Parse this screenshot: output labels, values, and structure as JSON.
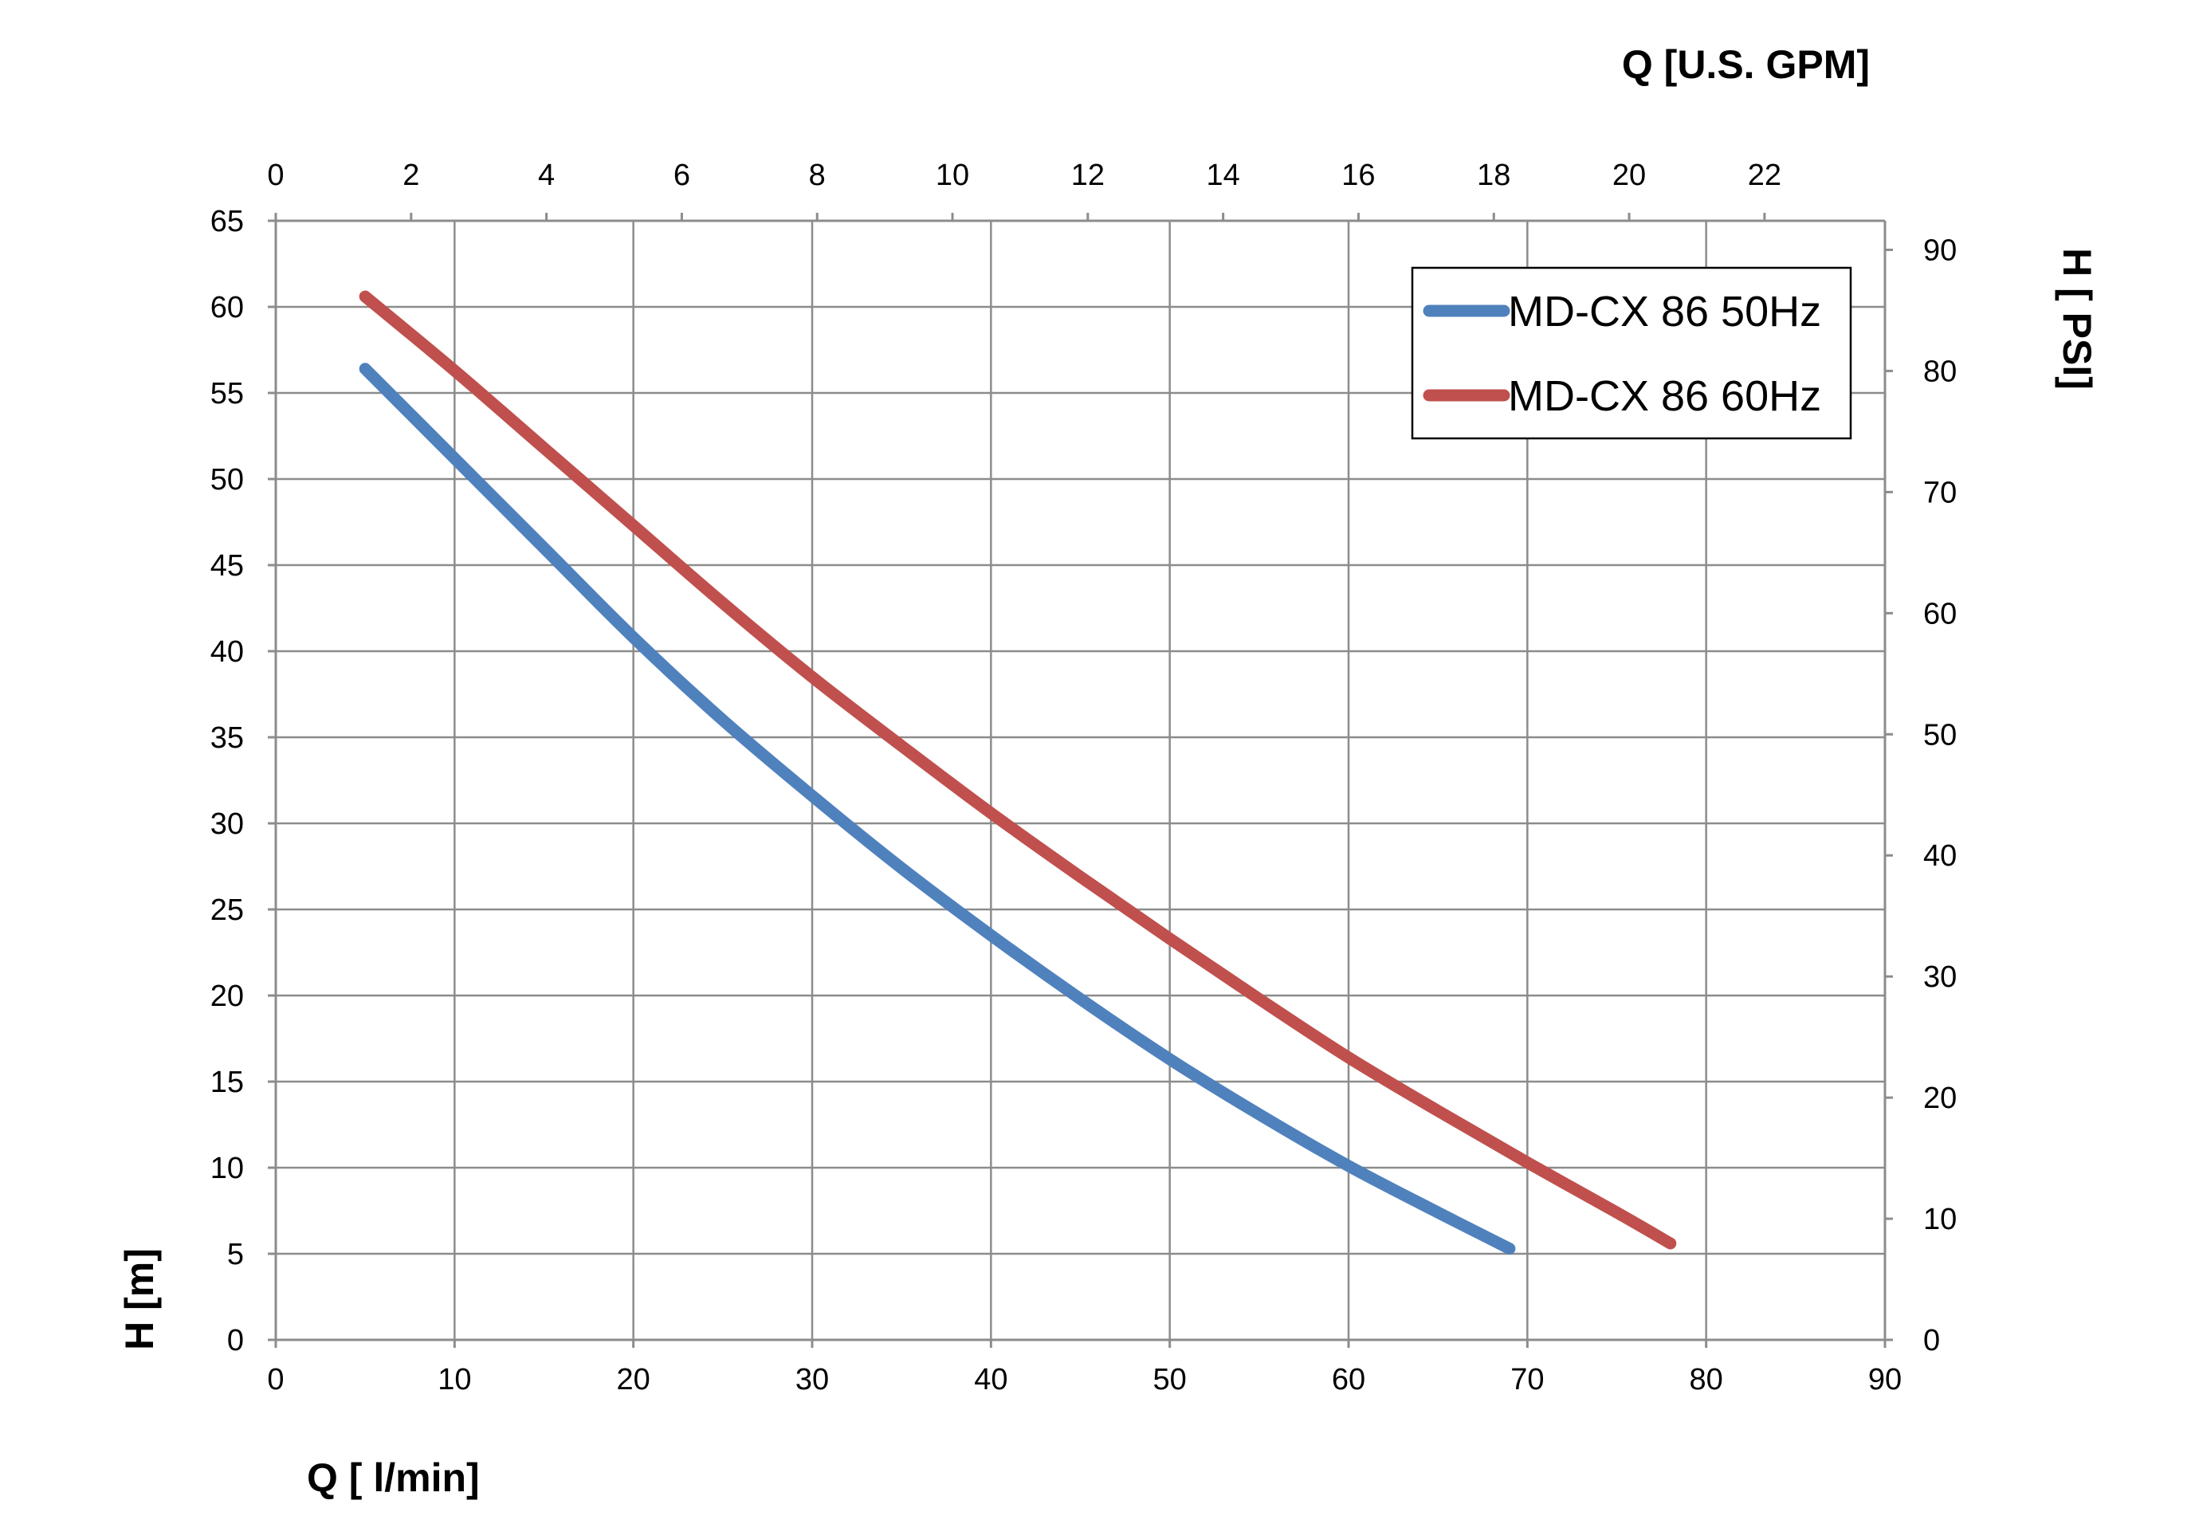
{
  "chart_data": {
    "type": "line",
    "x_bottom": {
      "label": "Q [ l/min]",
      "min": 0,
      "max": 90,
      "step": 10,
      "ticks": [
        "0",
        "10",
        "20",
        "30",
        "40",
        "50",
        "60",
        "70",
        "80",
        "90"
      ]
    },
    "x_top": {
      "label": "Q  [U.S. GPM]",
      "min": 0,
      "max": 23.78,
      "step": 2,
      "ticks": [
        "0",
        "2",
        "4",
        "6",
        "8",
        "10",
        "12",
        "14",
        "16",
        "18",
        "20",
        "22"
      ]
    },
    "y_left": {
      "label": "H [m]",
      "min": 0,
      "max": 65,
      "step": 5,
      "ticks": [
        "0",
        "5",
        "10",
        "15",
        "20",
        "25",
        "30",
        "35",
        "40",
        "45",
        "50",
        "55",
        "60",
        "65"
      ]
    },
    "y_right": {
      "label": "H [ PSI]",
      "min": 0,
      "max": 92.4,
      "step": 10,
      "ticks": [
        "0",
        "10",
        "20",
        "30",
        "40",
        "50",
        "60",
        "70",
        "80",
        "90"
      ]
    },
    "grid": true,
    "legend_position": "top-right",
    "series": [
      {
        "name": "MD-CX 86 50Hz",
        "color": "#4F81BD",
        "points": [
          [
            5,
            56.4
          ],
          [
            10,
            51.2
          ],
          [
            15,
            46.0
          ],
          [
            20,
            40.8
          ],
          [
            25,
            36.0
          ],
          [
            30,
            31.6
          ],
          [
            35,
            27.4
          ],
          [
            40,
            23.5
          ],
          [
            45,
            19.8
          ],
          [
            50,
            16.3
          ],
          [
            55,
            13.1
          ],
          [
            60,
            10.1
          ],
          [
            65,
            7.4
          ],
          [
            69,
            5.3
          ]
        ]
      },
      {
        "name": "MD-CX 86 60Hz",
        "color": "#C0504D",
        "points": [
          [
            5,
            60.6
          ],
          [
            10,
            56.3
          ],
          [
            15,
            51.8
          ],
          [
            20,
            47.3
          ],
          [
            25,
            42.8
          ],
          [
            30,
            38.5
          ],
          [
            35,
            34.5
          ],
          [
            40,
            30.6
          ],
          [
            45,
            26.9
          ],
          [
            50,
            23.3
          ],
          [
            55,
            19.8
          ],
          [
            60,
            16.4
          ],
          [
            65,
            13.3
          ],
          [
            70,
            10.3
          ],
          [
            75,
            7.4
          ],
          [
            78,
            5.6
          ]
        ]
      }
    ]
  }
}
